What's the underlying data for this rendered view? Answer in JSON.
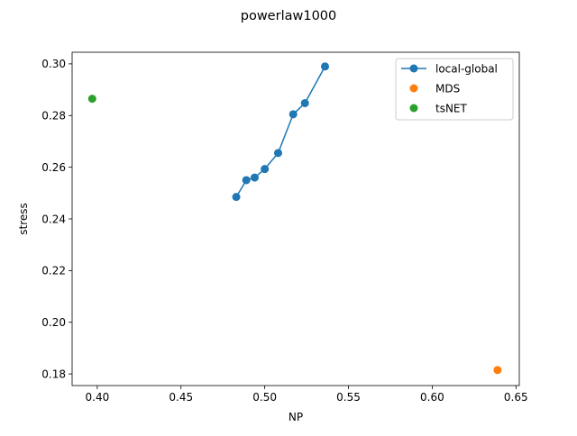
{
  "chart_data": {
    "type": "scatter",
    "title": "powerlaw1000",
    "xlabel": "NP",
    "ylabel": "stress",
    "xlim": [
      0.385,
      0.652
    ],
    "ylim": [
      0.1755,
      0.3045
    ],
    "x_ticks": [
      0.4,
      0.45,
      0.5,
      0.55,
      0.6,
      0.65
    ],
    "x_tick_labels": [
      "0.40",
      "0.45",
      "0.50",
      "0.55",
      "0.60",
      "0.65"
    ],
    "y_ticks": [
      0.18,
      0.2,
      0.22,
      0.24,
      0.26,
      0.28,
      0.3
    ],
    "y_tick_labels": [
      "0.18",
      "0.20",
      "0.22",
      "0.24",
      "0.26",
      "0.28",
      "0.30"
    ],
    "grid": false,
    "legend_position": "top-right",
    "series": [
      {
        "name": "local-global",
        "color": "#1f77b4",
        "mode": "line+markers",
        "points": [
          {
            "x": 0.483,
            "y": 0.2485
          },
          {
            "x": 0.489,
            "y": 0.255
          },
          {
            "x": 0.494,
            "y": 0.256
          },
          {
            "x": 0.5,
            "y": 0.2593
          },
          {
            "x": 0.508,
            "y": 0.2655
          },
          {
            "x": 0.517,
            "y": 0.2805
          },
          {
            "x": 0.524,
            "y": 0.2848
          },
          {
            "x": 0.536,
            "y": 0.299
          }
        ]
      },
      {
        "name": "MDS",
        "color": "#ff7f0e",
        "mode": "markers",
        "points": [
          {
            "x": 0.639,
            "y": 0.1815
          }
        ]
      },
      {
        "name": "tsNET",
        "color": "#2ca02c",
        "mode": "markers",
        "points": [
          {
            "x": 0.397,
            "y": 0.2865
          }
        ]
      }
    ]
  }
}
